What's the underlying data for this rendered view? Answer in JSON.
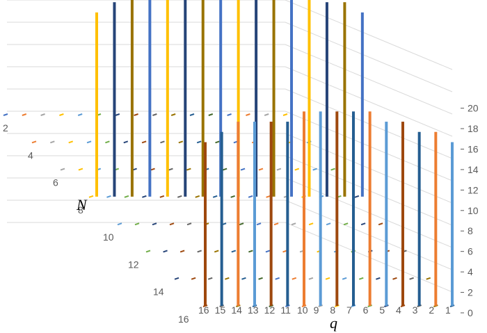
{
  "chart_data": {
    "type": "bar",
    "subtype": "3d-column",
    "title": "",
    "xlabel": "q",
    "ylabel": "N",
    "zlabel": "",
    "x_categories": [
      "16",
      "15",
      "14",
      "13",
      "12",
      "11",
      "10",
      "9",
      "8",
      "7",
      "6",
      "5",
      "4",
      "3",
      "2",
      "1"
    ],
    "y_categories": [
      "2",
      "4",
      "6",
      "8",
      "10",
      "12",
      "14",
      "16"
    ],
    "z_ticks": [
      "0",
      "2",
      "4",
      "6",
      "8",
      "10",
      "12",
      "14",
      "16",
      "18",
      "20"
    ],
    "zlim": [
      0,
      20
    ],
    "grid": true,
    "legend": "none",
    "series_colors": [
      "#4472C4",
      "#ED7D31",
      "#A5A5A5",
      "#FFC000",
      "#5B9BD5",
      "#70AD47",
      "#264478",
      "#9E480E",
      "#636363",
      "#997300",
      "#255E91",
      "#43682B"
    ],
    "note_rows_q_range": [
      1,
      16
    ],
    "values": [
      [
        0,
        0,
        0,
        0,
        0,
        0,
        0,
        0,
        0,
        0,
        0,
        0,
        0,
        0,
        0,
        0
      ],
      [
        0,
        0,
        0,
        0,
        0,
        0,
        0,
        0,
        0,
        0,
        0,
        0,
        0,
        0,
        0,
        0
      ],
      [
        0,
        0,
        0,
        0,
        0,
        0,
        0,
        0,
        0,
        0,
        0,
        0,
        0,
        0,
        0,
        0
      ],
      [
        0,
        0,
        0,
        0,
        0,
        0,
        0,
        0,
        0,
        0,
        0,
        0,
        0,
        0,
        0,
        0
      ],
      [
        0,
        0,
        0,
        0,
        0,
        0,
        0,
        0,
        0,
        0,
        0,
        0,
        0,
        0,
        0,
        0
      ],
      [
        0,
        0,
        0,
        0,
        0,
        0,
        0,
        0,
        0,
        0,
        0,
        0,
        0,
        0,
        0,
        0
      ],
      [
        0,
        0,
        0,
        0,
        0,
        0,
        0,
        0,
        0,
        0,
        0,
        0,
        0,
        0,
        0,
        0
      ],
      [
        0,
        0,
        0,
        0,
        0,
        0,
        0,
        0,
        0,
        0,
        0,
        0,
        0,
        0,
        0,
        0
      ],
      [
        0,
        0,
        0,
        0,
        0,
        0,
        0,
        0,
        0,
        0,
        0,
        0,
        0,
        0,
        0,
        0
      ],
      [
        0,
        0,
        0,
        0,
        0,
        0,
        0,
        0,
        0,
        0,
        0,
        0,
        0,
        0,
        0,
        0
      ],
      [
        0,
        0,
        0,
        0,
        0,
        0,
        0,
        0,
        0,
        0,
        0,
        0,
        0,
        0,
        0,
        0
      ],
      [
        0,
        0,
        0,
        0,
        0,
        0,
        0,
        0,
        0,
        0,
        0,
        0,
        0,
        0,
        0,
        0
      ],
      [
        0,
        0,
        0,
        0,
        0,
        0,
        0,
        0,
        0,
        0,
        0,
        0,
        0,
        0,
        0,
        0
      ],
      [
        0,
        0,
        0,
        0,
        0,
        0,
        0,
        0,
        0,
        0,
        0,
        0,
        0,
        0,
        0,
        0
      ],
      [
        0,
        0,
        0,
        0,
        0,
        0,
        0,
        0,
        0,
        0,
        0,
        0,
        0,
        0,
        0,
        0
      ],
      [
        17,
        17,
        17,
        17,
        17,
        17,
        17,
        17,
        17,
        17,
        17,
        17,
        17,
        17,
        17,
        17
      ]
    ],
    "front_row_values": [
      16,
      17,
      18,
      18,
      18,
      18,
      19,
      19,
      19,
      19,
      19,
      18,
      18,
      17,
      17,
      16
    ],
    "back_row_values": [
      18,
      19,
      20,
      20,
      20,
      21,
      21,
      21,
      21,
      21,
      21,
      20,
      20,
      19,
      19,
      18
    ]
  }
}
